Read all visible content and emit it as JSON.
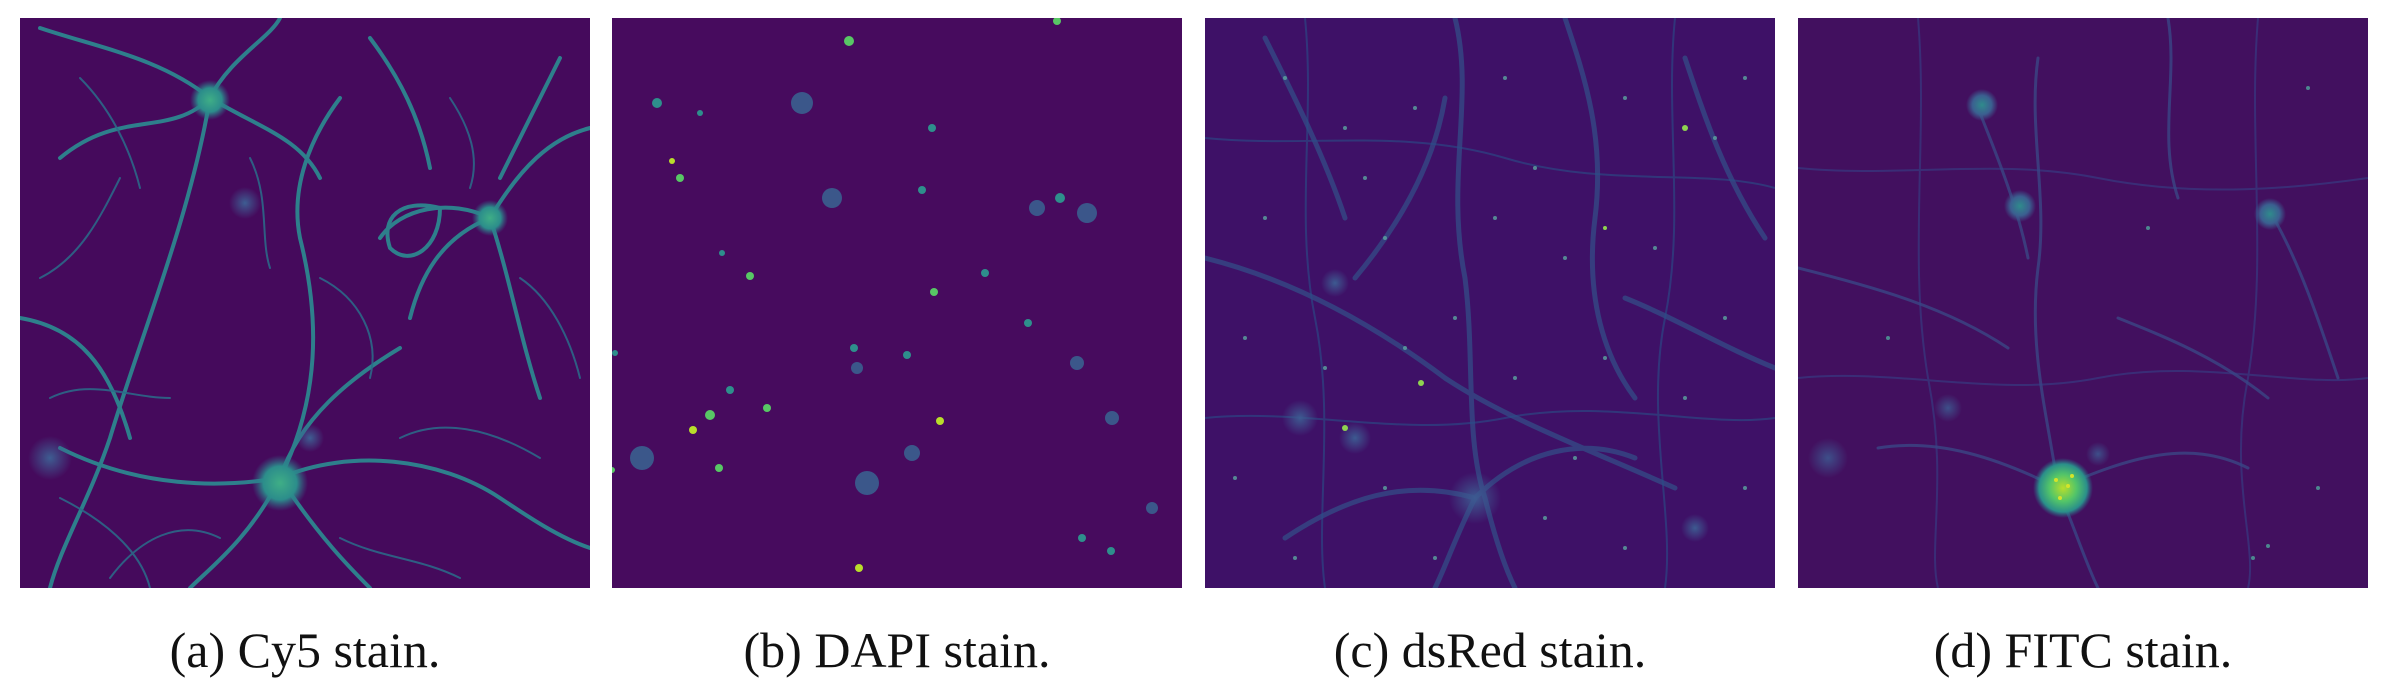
{
  "figure": {
    "panels": [
      {
        "caption": "(a) Cy5 stain."
      },
      {
        "caption": "(b) DAPI stain."
      },
      {
        "caption": "(c) dsRed stain."
      },
      {
        "caption": "(d) FITC stain."
      }
    ]
  },
  "colors": {
    "background": "#450a5c",
    "dim_signal": "#3b4d8b",
    "mid_signal": "#2a8d8c",
    "bright_signal": "#4fc46a",
    "peak_signal": "#b7de2a"
  }
}
